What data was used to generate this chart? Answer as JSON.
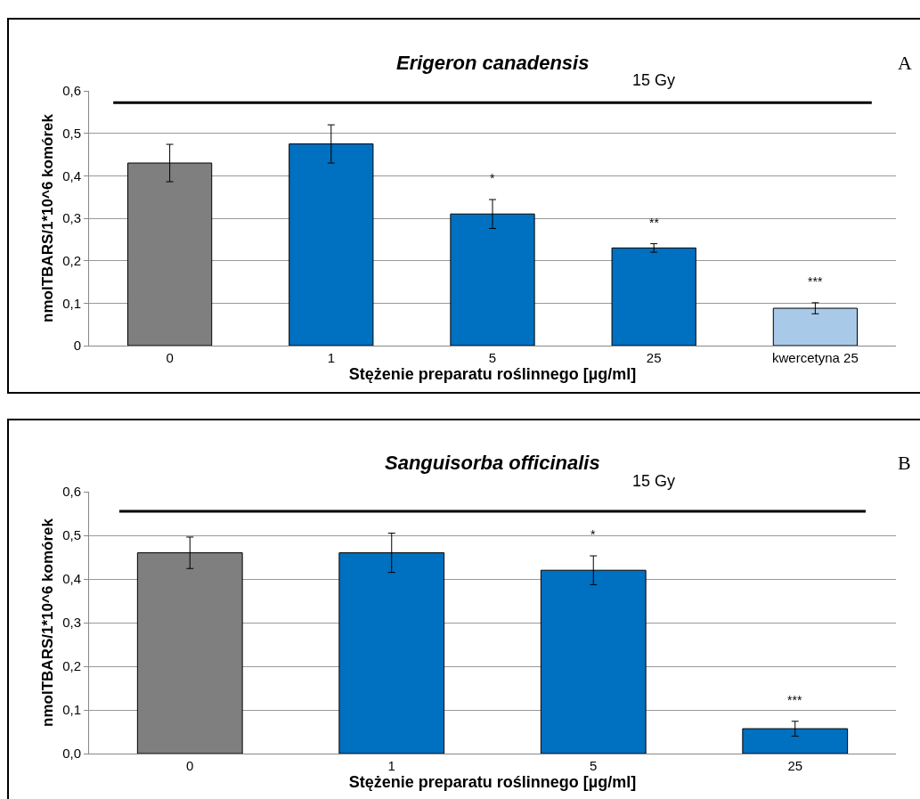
{
  "chart_data": [
    {
      "type": "bar",
      "title": "Erigeron canadensis",
      "xlabel": "Stężenie preparatu roślinnego [µg/ml]",
      "ylabel": "nmolTBARS/1*10^6 komórek",
      "categories": [
        "0",
        "1",
        "5",
        "25",
        "kwercetyna 25"
      ],
      "values": [
        0.43,
        0.475,
        0.31,
        0.23,
        0.088
      ],
      "errors": [
        0.044,
        0.045,
        0.034,
        0.01,
        0.013
      ],
      "colors": [
        "#7f7f7f",
        "#0070c0",
        "#0070c0",
        "#0070c0",
        "#a9c9e8"
      ],
      "ylim": [
        0,
        0.6
      ],
      "yticks": [
        0,
        {
          "value": 0.1,
          "label": "0,1"
        },
        {
          "value": 0.2,
          "label": "0,2"
        },
        {
          "value": 0.3,
          "label": "0,3"
        },
        {
          "value": 0.4,
          "label": "0,4"
        },
        {
          "value": 0.5,
          "label": "0,5"
        },
        {
          "value": 0.6,
          "label": "0,6"
        }
      ],
      "grid": "y",
      "ref_lines": [
        {
          "axis": "y",
          "value": 0.572,
          "label": "15 Gy",
          "color": "#000000"
        }
      ],
      "annotations": [
        {
          "text": "*",
          "x": "5",
          "y": 0.31
        },
        {
          "text": "**",
          "x": "25",
          "y": 0.23
        },
        {
          "text": "***",
          "x": "kwercetyna 25",
          "y": 0.088
        },
        "A"
      ]
    },
    {
      "type": "bar",
      "title": "Sanguisorba officinalis",
      "xlabel": "Stężenie preparatu roślinnego [µg/ml]",
      "ylabel": "nmolTBARS/1*10^6 komórek",
      "categories": [
        "0",
        "1",
        "5",
        "25"
      ],
      "values": [
        0.46,
        0.46,
        0.42,
        0.057
      ],
      "errors": [
        0.036,
        0.045,
        0.033,
        0.017
      ],
      "colors": [
        "#7f7f7f",
        "#0070c0",
        "#0070c0",
        "#0070c0"
      ],
      "ylim": [
        0,
        0.6
      ],
      "yticks": [
        {
          "value": 0,
          "label": "0,0"
        },
        {
          "value": 0.1,
          "label": "0,1"
        },
        {
          "value": 0.2,
          "label": "0,2"
        },
        {
          "value": 0.3,
          "label": "0,3"
        },
        {
          "value": 0.4,
          "label": "0,4"
        },
        {
          "value": 0.5,
          "label": "0,5"
        },
        {
          "value": 0.6,
          "label": "0,6"
        }
      ],
      "grid": "y",
      "ref_lines": [
        {
          "axis": "y",
          "value": 0.555,
          "label": "15 Gy",
          "color": "#000000"
        }
      ],
      "annotations": [
        {
          "text": "*",
          "x": "5",
          "y": 0.42
        },
        {
          "text": "***",
          "x": "25",
          "y": 0.057
        },
        "B"
      ]
    }
  ]
}
